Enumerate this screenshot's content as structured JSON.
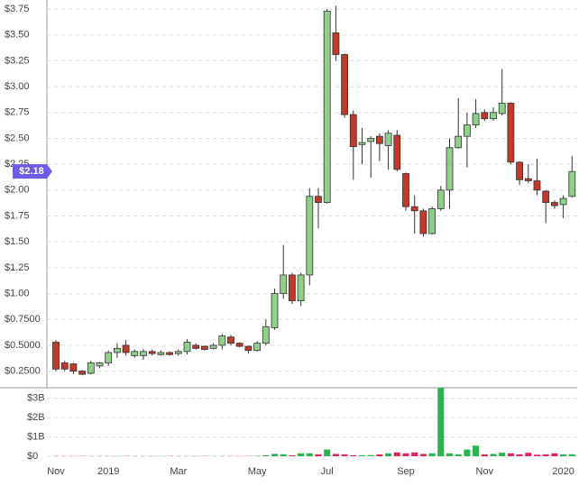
{
  "chart_data": {
    "type": "candlestick",
    "categories": [
      "Nov",
      null,
      null,
      null,
      null,
      null,
      "2019",
      null,
      null,
      null,
      null,
      null,
      null,
      null,
      "Mar",
      null,
      null,
      null,
      null,
      null,
      null,
      null,
      null,
      "May",
      null,
      null,
      null,
      null,
      null,
      null,
      null,
      "Jul",
      null,
      null,
      null,
      null,
      null,
      null,
      null,
      null,
      "Sep",
      null,
      null,
      null,
      null,
      null,
      null,
      null,
      null,
      "Nov",
      null,
      null,
      null,
      null,
      null,
      null,
      null,
      null,
      "2020",
      null
    ],
    "open": [
      0.53,
      0.33,
      0.32,
      0.25,
      0.23,
      0.3,
      0.33,
      0.43,
      0.5,
      0.4,
      0.4,
      0.44,
      0.41,
      0.43,
      0.42,
      0.44,
      0.5,
      0.49,
      0.47,
      0.5,
      0.58,
      0.52,
      0.49,
      0.45,
      0.52,
      0.67,
      1.0,
      1.18,
      0.93,
      1.18,
      1.94,
      1.88,
      3.52,
      3.31,
      2.73,
      2.44,
      2.47,
      2.52,
      2.43,
      2.53,
      2.16,
      1.84,
      1.8,
      1.58,
      1.82,
      2.0,
      2.41,
      2.52,
      2.63,
      2.75,
      2.69,
      2.74,
      2.84,
      2.27,
      2.11,
      2.09,
      1.99,
      1.88,
      1.86,
      1.94
    ],
    "high": [
      0.55,
      0.35,
      0.33,
      0.26,
      0.35,
      0.34,
      0.45,
      0.52,
      0.55,
      0.46,
      0.46,
      0.46,
      0.45,
      0.44,
      0.46,
      0.56,
      0.52,
      0.5,
      0.52,
      0.61,
      0.6,
      0.53,
      0.5,
      0.54,
      0.75,
      1.05,
      1.47,
      1.2,
      1.2,
      2.02,
      2.02,
      3.75,
      3.78,
      3.32,
      2.77,
      2.6,
      2.52,
      2.55,
      2.58,
      2.58,
      2.17,
      1.95,
      1.82,
      1.84,
      2.04,
      2.5,
      2.89,
      2.75,
      2.88,
      2.78,
      2.8,
      3.17,
      2.85,
      2.28,
      2.25,
      2.3,
      2.0,
      1.9,
      1.95,
      2.33
    ],
    "low": [
      0.25,
      0.25,
      0.22,
      0.21,
      0.22,
      0.28,
      0.3,
      0.38,
      0.4,
      0.38,
      0.36,
      0.4,
      0.4,
      0.4,
      0.4,
      0.41,
      0.46,
      0.45,
      0.46,
      0.46,
      0.5,
      0.48,
      0.42,
      0.44,
      0.5,
      0.65,
      0.95,
      0.9,
      0.88,
      1.08,
      1.63,
      1.87,
      3.25,
      2.7,
      2.1,
      2.25,
      2.12,
      2.28,
      2.2,
      2.18,
      1.8,
      1.58,
      1.55,
      1.57,
      1.8,
      1.82,
      2.4,
      2.22,
      2.6,
      2.67,
      2.67,
      2.72,
      2.25,
      2.05,
      2.07,
      1.95,
      1.68,
      1.82,
      1.73,
      1.93
    ],
    "close": [
      0.27,
      0.27,
      0.25,
      0.22,
      0.33,
      0.33,
      0.43,
      0.47,
      0.43,
      0.44,
      0.44,
      0.42,
      0.43,
      0.41,
      0.44,
      0.53,
      0.47,
      0.46,
      0.5,
      0.59,
      0.52,
      0.49,
      0.45,
      0.52,
      0.68,
      1.0,
      1.18,
      0.93,
      1.18,
      1.94,
      1.88,
      3.73,
      3.31,
      2.73,
      2.42,
      2.46,
      2.5,
      2.45,
      2.55,
      2.2,
      1.84,
      1.8,
      1.58,
      1.82,
      2.0,
      2.41,
      2.52,
      2.63,
      2.74,
      2.69,
      2.75,
      2.84,
      2.27,
      2.1,
      2.09,
      2.0,
      1.88,
      1.85,
      1.92,
      2.18
    ],
    "volume": [
      0.01,
      0.01,
      0.01,
      0.01,
      0.01,
      0.01,
      0.01,
      0.01,
      0.01,
      0.01,
      0.01,
      0.01,
      0.01,
      0.01,
      0.01,
      0.01,
      0.01,
      0.01,
      0.01,
      0.01,
      0.01,
      0.01,
      0.01,
      0.02,
      0.05,
      0.12,
      0.1,
      0.05,
      0.15,
      0.15,
      0.1,
      0.35,
      0.12,
      0.1,
      0.05,
      0.05,
      0.06,
      0.1,
      0.15,
      0.2,
      0.15,
      0.2,
      0.12,
      0.15,
      3.55,
      0.15,
      0.1,
      0.35,
      0.55,
      0.1,
      0.12,
      0.18,
      0.15,
      0.1,
      0.18,
      0.08,
      0.1,
      0.15,
      0.1,
      0.1
    ],
    "up_color": "#8fcf8a",
    "down_color": "#c0392b",
    "volume_up_color": "#2ab34f",
    "volume_down_color": "#e0245e",
    "ylim": [
      0.09,
      3.82
    ],
    "yticks": [
      {
        "value": 0.25,
        "label": "$0.2500"
      },
      {
        "value": 0.5,
        "label": "$0.5000"
      },
      {
        "value": 0.75,
        "label": "$0.7500"
      },
      {
        "value": 1,
        "label": "$1.00"
      },
      {
        "value": 1.25,
        "label": "$1.25"
      },
      {
        "value": 1.5,
        "label": "$1.50"
      },
      {
        "value": 1.75,
        "label": "$1.75"
      },
      {
        "value": 2,
        "label": "$2.00"
      },
      {
        "value": 2.25,
        "label": "$2.25"
      },
      {
        "value": 2.5,
        "label": "$2.50"
      },
      {
        "value": 2.75,
        "label": "$2.75"
      },
      {
        "value": 3,
        "label": "$3.00"
      },
      {
        "value": 3.25,
        "label": "$3.25"
      },
      {
        "value": 3.5,
        "label": "$3.50"
      },
      {
        "value": 3.75,
        "label": "$3.75"
      }
    ],
    "y2lim": [
      0,
      3.55
    ],
    "y2ticks": [
      {
        "value": 0,
        "label": "$0"
      },
      {
        "value": 1,
        "label": "$1B"
      },
      {
        "value": 2,
        "label": "$2B"
      },
      {
        "value": 3,
        "label": "$3B"
      }
    ],
    "current_value": 2.18,
    "current_label": "$2.18",
    "current_color": "#6c5ce7",
    "grid": true
  }
}
